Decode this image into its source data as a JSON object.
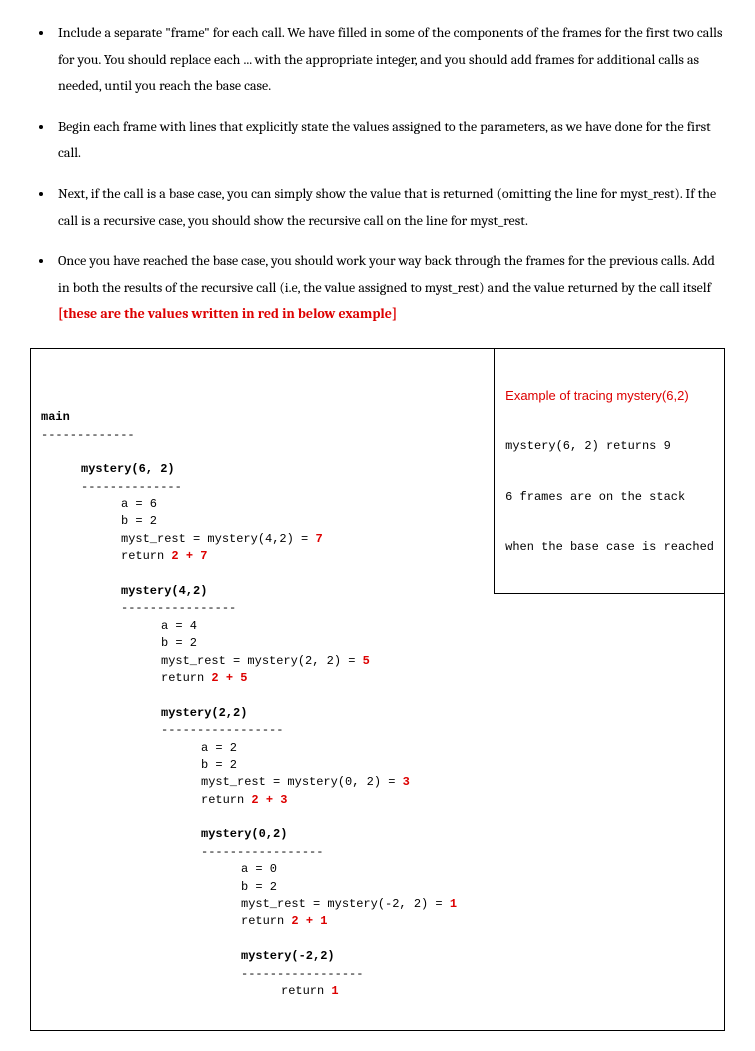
{
  "bullets": [
    {
      "pre": "Include a separate \"frame\" for each call. We have filled in some of the components of the frames for the first two calls for you. You should replace each ... with the appropriate integer, and you should add frames for additional calls as needed, until you reach the base case."
    },
    {
      "pre": "Begin each frame with lines that explicitly state the values assigned to the parameters, as we have done for the first call."
    },
    {
      "pre": "Next, if the call is a base case, you can simply show the value that is returned (omitting the line for myst_rest). If the call is a recursive case, you should show the recursive call on the line for myst_rest."
    },
    {
      "pre": "Once you have reached the base case, you should work your way back through the frames for the previous calls. Add in both the results of the recursive call (i.e, the value assigned to myst_rest) and the value returned by the call itself ",
      "red": "[these are the values written in red in below example]"
    }
  ],
  "example": {
    "title": "Example of tracing mystery(6,2)",
    "line1": "mystery(6, 2) returns 9",
    "line2": "6 frames are on the stack",
    "line3": "when the base case is reached"
  },
  "trace": {
    "main_label": "main",
    "main_dashes": "-------------",
    "f1": {
      "header": "mystery(6, 2)",
      "dashes": "--------------",
      "a": "a = 6",
      "b": "b = 2",
      "rest_pre": "myst_rest = mystery(4,2) = ",
      "rest_val": "7",
      "ret_pre": "return ",
      "ret_val": "2 + 7"
    },
    "f2": {
      "header": "mystery(4,2)",
      "dashes": "----------------",
      "a": "a = 4",
      "b": "b = 2",
      "rest_pre": "myst_rest = mystery(2, 2) = ",
      "rest_val": "5",
      "ret_pre": "return ",
      "ret_val": "2 + 5"
    },
    "f3": {
      "header": "mystery(2,2)",
      "dashes": "-----------------",
      "a": "a = 2",
      "b": "b = 2",
      "rest_pre": "myst_rest = mystery(0, 2) = ",
      "rest_val": "3",
      "ret_pre": "return ",
      "ret_val": "2 + 3"
    },
    "f4": {
      "header": "mystery(0,2)",
      "dashes": "-----------------",
      "a": "a = 0",
      "b": "b = 2",
      "rest_pre": "myst_rest = mystery(-2, 2) = ",
      "rest_val": "1",
      "ret_pre": "return ",
      "ret_val": "2 + 1"
    },
    "f5": {
      "header": "mystery(-2,2)",
      "dashes": "-----------------",
      "ret_pre": "return ",
      "ret_val": "1"
    }
  }
}
